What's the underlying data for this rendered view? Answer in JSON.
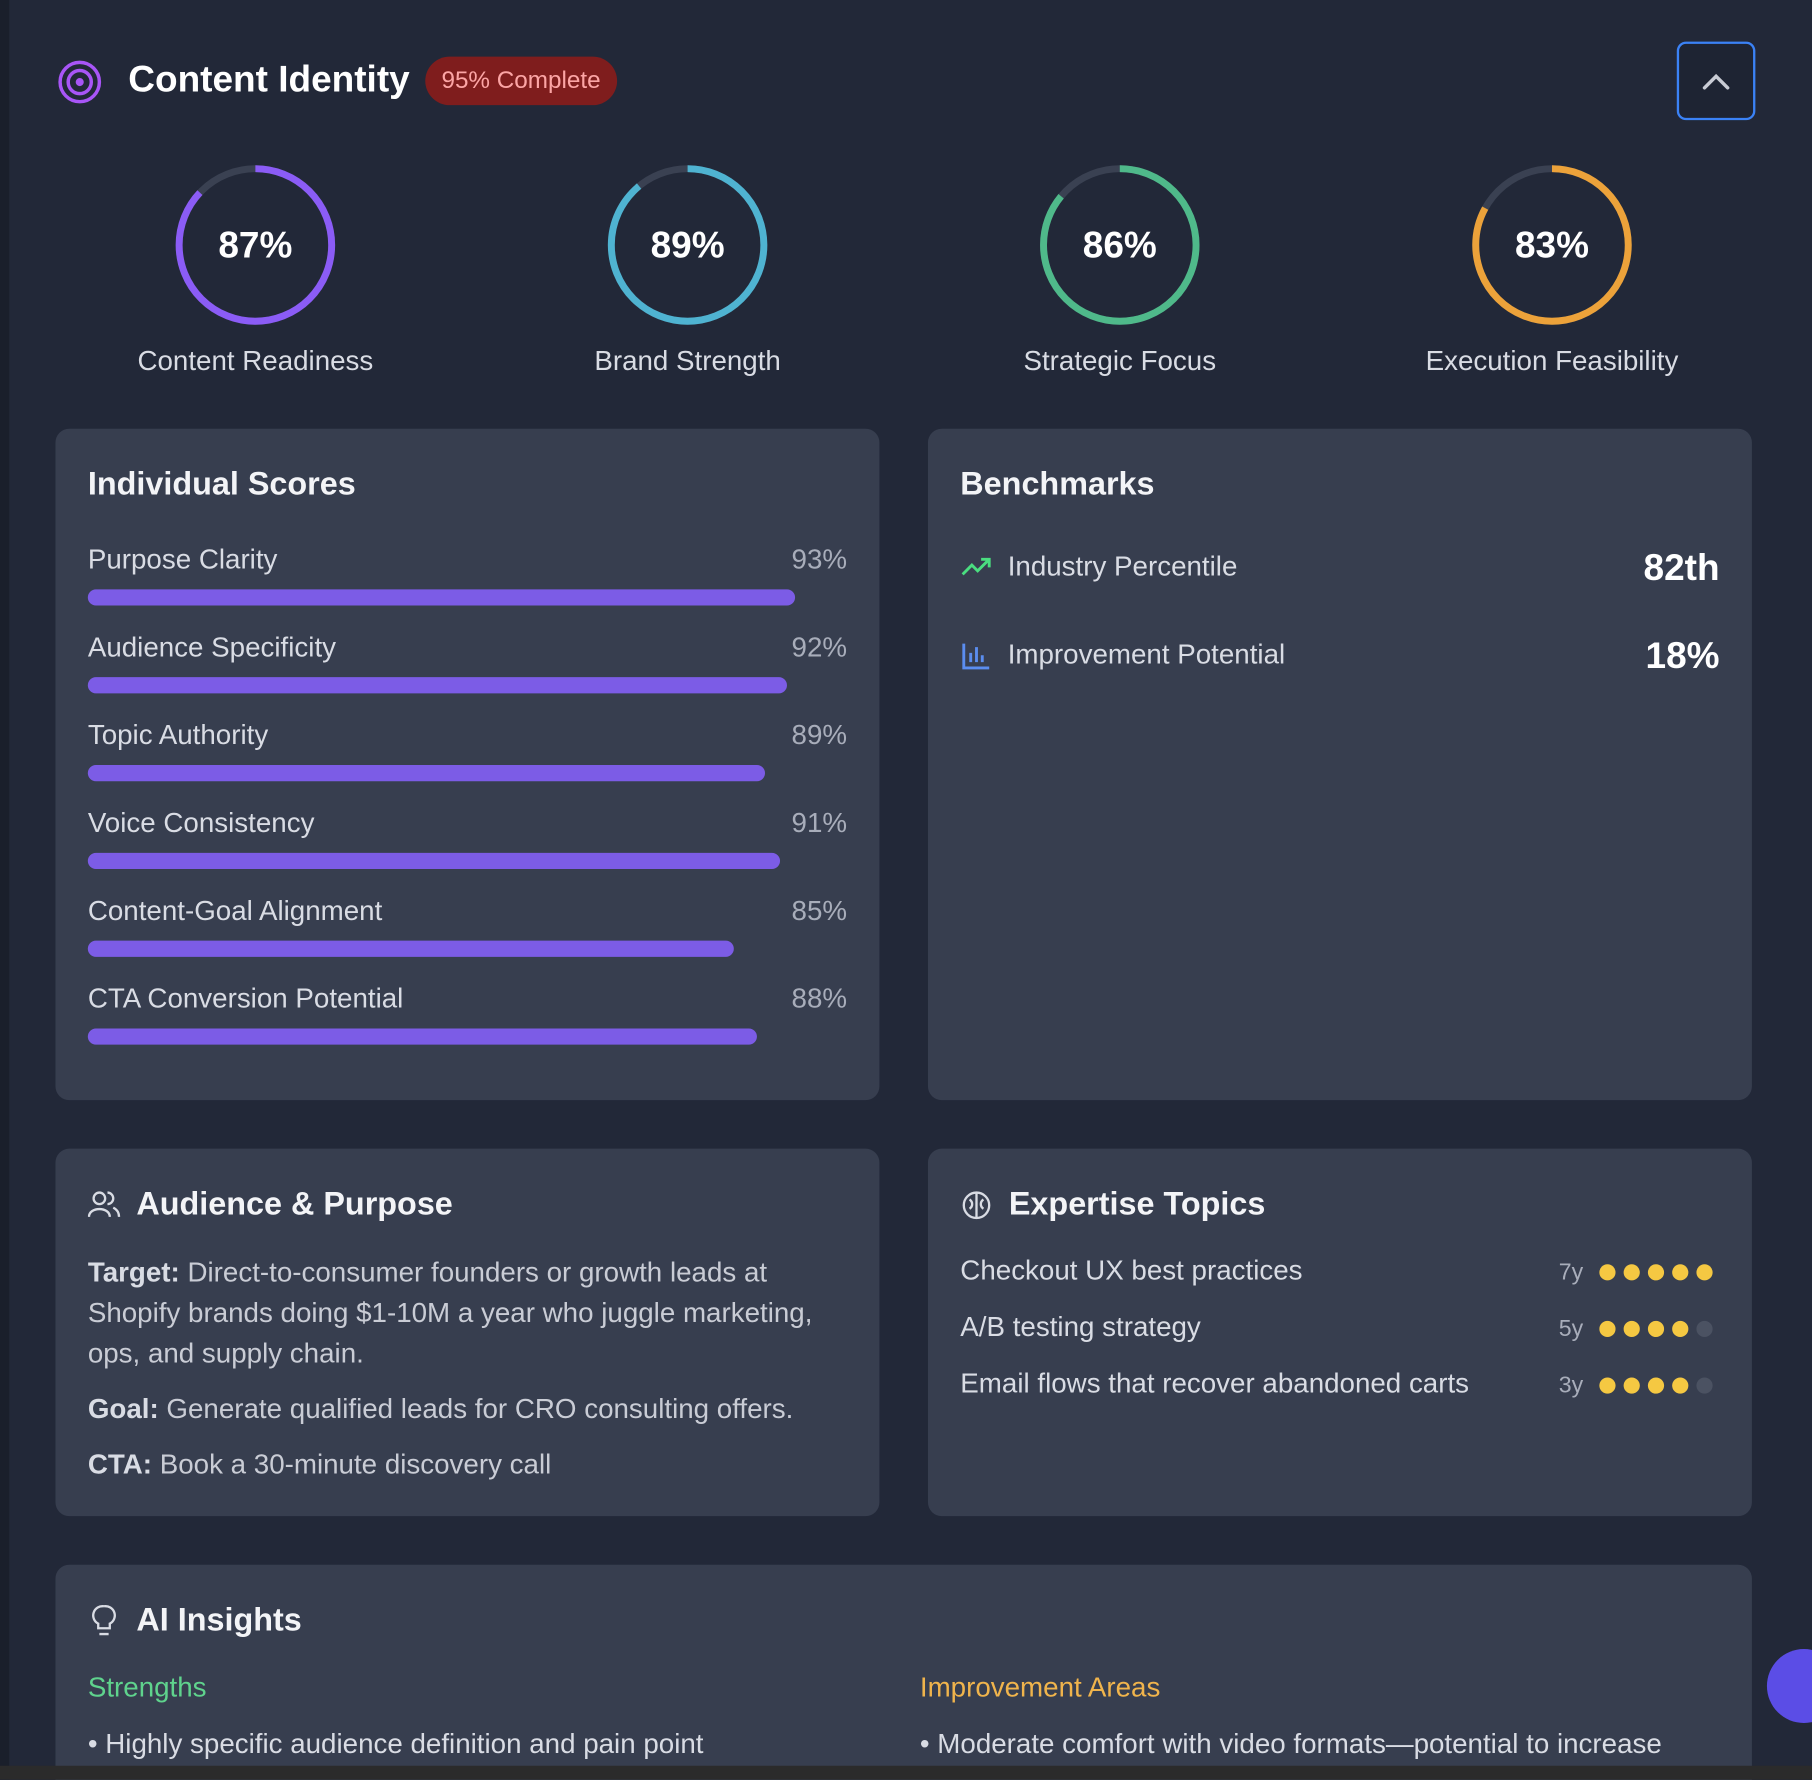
{
  "header": {
    "title": "Content Identity",
    "badge": "95% Complete"
  },
  "rings": [
    {
      "label": "Content Readiness",
      "value": 87,
      "value_label": "87%",
      "color": "#8b5cf6"
    },
    {
      "label": "Brand Strength",
      "value": 89,
      "value_label": "89%",
      "color": "#4fb3d1"
    },
    {
      "label": "Strategic Focus",
      "value": 86,
      "value_label": "86%",
      "color": "#4fb98a"
    },
    {
      "label": "Execution Feasibility",
      "value": 83,
      "value_label": "83%",
      "color": "#eca23a"
    }
  ],
  "individual_scores": {
    "title": "Individual Scores",
    "color": "#7c5ce6",
    "items": [
      {
        "name": "Purpose Clarity",
        "value": 93,
        "value_label": "93%"
      },
      {
        "name": "Audience Specificity",
        "value": 92,
        "value_label": "92%"
      },
      {
        "name": "Topic Authority",
        "value": 89,
        "value_label": "89%"
      },
      {
        "name": "Voice Consistency",
        "value": 91,
        "value_label": "91%"
      },
      {
        "name": "Content-Goal Alignment",
        "value": 85,
        "value_label": "85%"
      },
      {
        "name": "CTA Conversion Potential",
        "value": 88,
        "value_label": "88%"
      }
    ]
  },
  "benchmarks": {
    "title": "Benchmarks",
    "items": [
      {
        "name": "Industry Percentile",
        "value": "82th"
      },
      {
        "name": "Improvement Potential",
        "value": "18%"
      }
    ]
  },
  "audience": {
    "title": "Audience & Purpose",
    "items": [
      {
        "label": "Target:",
        "text": "Direct-to-consumer founders or growth leads at Shopify brands doing $1-10M a year who juggle marketing, ops, and supply chain."
      },
      {
        "label": "Goal:",
        "text": "Generate qualified leads for CRO consulting offers."
      },
      {
        "label": "CTA:",
        "text": "Book a 30-minute discovery call"
      }
    ]
  },
  "expertise": {
    "title": "Expertise Topics",
    "items": [
      {
        "name": "Checkout UX best practices",
        "years": "7y",
        "rating": 5
      },
      {
        "name": "A/B testing strategy",
        "years": "5y",
        "rating": 4
      },
      {
        "name": "Email flows that recover abandoned carts",
        "years": "3y",
        "rating": 4
      }
    ]
  },
  "insights": {
    "title": "AI Insights",
    "strengths": {
      "title": "Strengths",
      "items": [
        "Highly specific audience definition and pain point"
      ]
    },
    "improvements": {
      "title": "Improvement Areas",
      "items": [
        "Moderate comfort with video formats—potential to increase"
      ]
    }
  }
}
